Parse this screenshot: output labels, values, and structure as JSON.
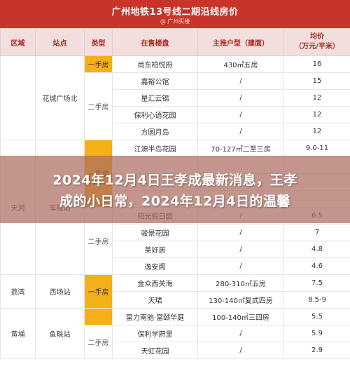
{
  "header": {
    "title": "广州地铁13号线二期沿线房价",
    "subtitle": "@ 广州买楼"
  },
  "columns": [
    "区域",
    "站点",
    "类型",
    "在售楼盘",
    "主推户型（建面）",
    "均价\n（万元/平米）"
  ],
  "groups": [
    {
      "region": "",
      "station": "花城广场北",
      "types": [
        {
          "label": "一手房",
          "highlight": true,
          "rows": [
            [
              "尚东柏悦府",
              "430㎡五房",
              "16"
            ]
          ]
        },
        {
          "label": "二手房",
          "highlight": false,
          "rows": [
            [
              "嘉裕公馆",
              "/",
              "15"
            ],
            [
              "星汇云锦",
              "/",
              "12"
            ],
            [
              "保利心语花园",
              "/",
              "12"
            ],
            [
              "方圆月岛",
              "/",
              "12"
            ]
          ]
        }
      ]
    },
    {
      "region": "天河",
      "station": "车陂站",
      "types": [
        {
          "label": "一手房",
          "highlight": true,
          "rows": [
            [
              "江源半岛花园",
              "70-127㎡二至三房",
              "9.0-11"
            ],
            [
              "",
              "",
              ""
            ],
            [
              "",
              "",
              ""
            ],
            [
              "",
              "",
              ""
            ]
          ]
        },
        {
          "label": "二手房",
          "highlight": false,
          "rows": [
            [
              "阳光假日园",
              "/",
              "6.5"
            ],
            [
              "骏景花园",
              "/",
              "7"
            ],
            [
              "美好居",
              "/",
              "4.8"
            ],
            [
              "逸安阁",
              "/",
              "4.6"
            ]
          ]
        }
      ]
    },
    {
      "region": "荔湾",
      "station": "西场站",
      "types": [
        {
          "label": "一手房",
          "highlight": true,
          "rows": [
            [
              "金众西关海",
              "280-310㎡五房",
              "7.5"
            ],
            [
              "天珺",
              "130-140㎡复式四房",
              "8.5-9"
            ]
          ]
        }
      ]
    },
    {
      "region": "黄埔",
      "station": "鱼珠站",
      "types": [
        {
          "label": "",
          "highlight": true,
          "rows": [
            [
              "富力南驰·富颐华庭",
              "100-140㎡三四房",
              "5.5"
            ]
          ]
        },
        {
          "label": "二手房",
          "highlight": false,
          "rows": [
            [
              "保利学府里",
              "/",
              "5.9"
            ],
            [
              "天虹花园",
              "/",
              "2.9"
            ]
          ]
        }
      ]
    }
  ],
  "overlay": {
    "line1": "2024年12月4日王孝成最新消息，王孝",
    "line2": "成的小日常，2024年12月4日的温馨"
  }
}
